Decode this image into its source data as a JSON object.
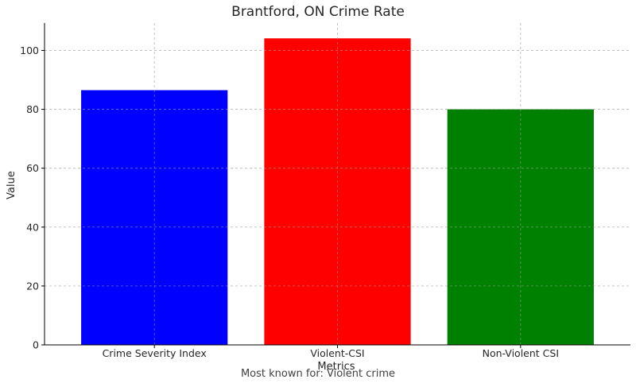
{
  "chart_data": {
    "type": "bar",
    "title": "Brantford, ON Crime Rate",
    "xlabel": "Metrics",
    "ylabel": "Value",
    "categories": [
      "Crime Severity Index",
      "Violent-CSI",
      "Non-Violent CSI"
    ],
    "values": [
      86.5,
      104.1,
      80.0
    ],
    "colors": [
      "#0000ff",
      "#ff0000",
      "#008000"
    ],
    "ylim": [
      0,
      109.3
    ],
    "yticks": [
      0,
      20,
      40,
      60,
      80,
      100
    ],
    "grid": true,
    "caption": "Most known for: Violent crime"
  }
}
